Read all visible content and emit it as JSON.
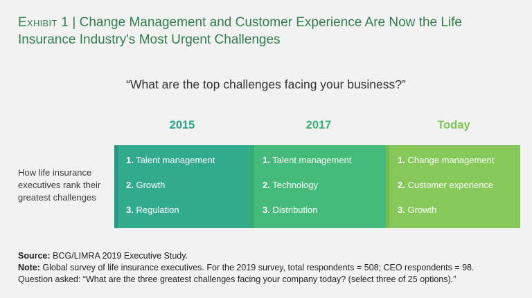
{
  "title": {
    "exhibit": "Exhibit 1",
    "separator": " | ",
    "text": "Change Management and Customer Experience Are Now the Life Insurance Industry's Most Urgent Challenges"
  },
  "question": "“What are the top challenges facing your business?”",
  "row_label": "How life insurance executives rank their greatest challenges",
  "columns": [
    {
      "year": "2015",
      "items": [
        {
          "rank": "1.",
          "label": "Talent management"
        },
        {
          "rank": "2.",
          "label": "Growth"
        },
        {
          "rank": "3.",
          "label": "Regulation"
        }
      ]
    },
    {
      "year": "2017",
      "items": [
        {
          "rank": "1.",
          "label": "Talent management"
        },
        {
          "rank": "2.",
          "label": "Technology"
        },
        {
          "rank": "3.",
          "label": "Distribution"
        }
      ]
    },
    {
      "year": "Today",
      "items": [
        {
          "rank": "1.",
          "label": "Change management"
        },
        {
          "rank": "2.",
          "label": "Customer experience"
        },
        {
          "rank": "3.",
          "label": "Growth"
        }
      ]
    }
  ],
  "notes": {
    "source_label": "Source:",
    "source_text": " BCG/LIMRA 2019 Executive Study.",
    "note_label": "Note:",
    "note_text": " Global survey of life insurance executives. For the 2019 survey, total respondents = 508; CEO respondents = 98.",
    "question_text": "Question asked: “What are the three greatest challenges facing your company today? (select three of 25 options).”"
  },
  "colors": {
    "title": "#2f7d4a",
    "col2015": "#32aa8e",
    "col2017": "#44bb7a",
    "colToday": "#86c95a"
  }
}
